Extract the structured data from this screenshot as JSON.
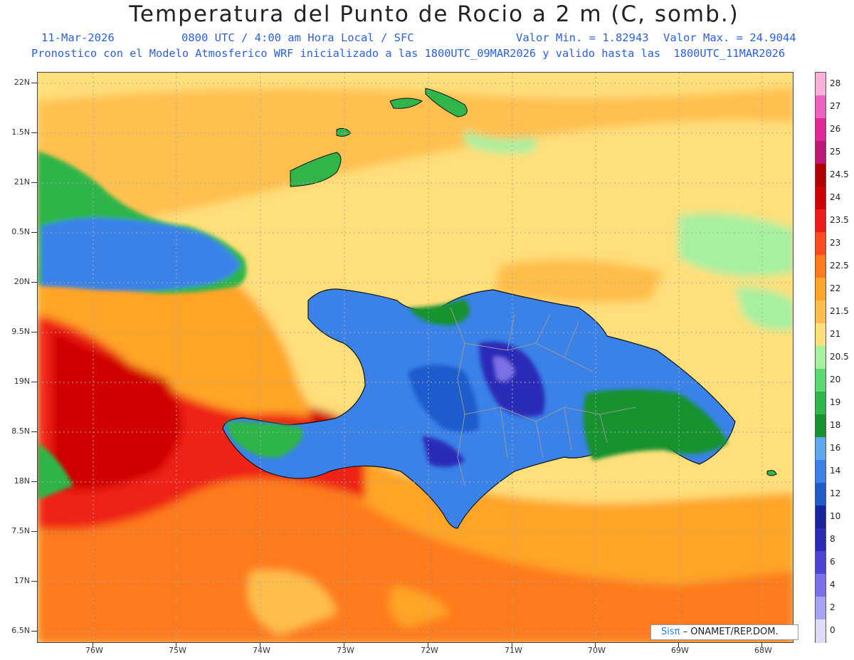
{
  "title": "Temperatura del Punto de Rocio a 2 m (C, somb.)",
  "line2": {
    "date": "11-Mar-2026",
    "time": "0800 UTC / 4:00 am Hora Local / SFC",
    "vmin": "Valor Min. = 1.82943",
    "vmax": "Valor Max. = 24.9044"
  },
  "line3": "Pronostico con el Modelo Atmosferico WRF inicializado a las 1800UTC_09MAR2026 y valido hasta las  1800UTC_11MAR2026",
  "lat_labels": [
    "22N",
    "1.5N",
    "21N",
    "0.5N",
    "20N",
    "9.5N",
    "19N",
    "8.5N",
    "18N",
    "7.5N",
    "17N",
    "6.5N"
  ],
  "lon_labels": [
    "76W",
    "75W",
    "74W",
    "73W",
    "72W",
    "71W",
    "70W",
    "69W",
    "68W"
  ],
  "colorbar": {
    "levels": [
      "28",
      "27",
      "26",
      "25",
      "24.5",
      "24",
      "23.5",
      "23",
      "22.5",
      "22",
      "21.5",
      "21",
      "20.5",
      "20",
      "19",
      "18",
      "16",
      "14",
      "12",
      "10",
      "8",
      "6",
      "4",
      "2",
      "0"
    ],
    "colors": [
      "#f7b1d8",
      "#f060c0",
      "#e0289c",
      "#c01878",
      "#b00000",
      "#d00000",
      "#ee1c1c",
      "#ff4b20",
      "#ff7a1e",
      "#ffa426",
      "#ffbe4a",
      "#ffdf7a",
      "#a6f0a0",
      "#5cd870",
      "#2fb54a",
      "#18922e",
      "#5ea8f0",
      "#3a82e8",
      "#1e5ccc",
      "#1a24a0",
      "#2a2cb8",
      "#4c44d4",
      "#7a70e8",
      "#a8a2f2",
      "#dcdcf6"
    ]
  },
  "credit": {
    "brand": "Sisπ",
    "text": "– ONAMET/REP.DOM."
  }
}
